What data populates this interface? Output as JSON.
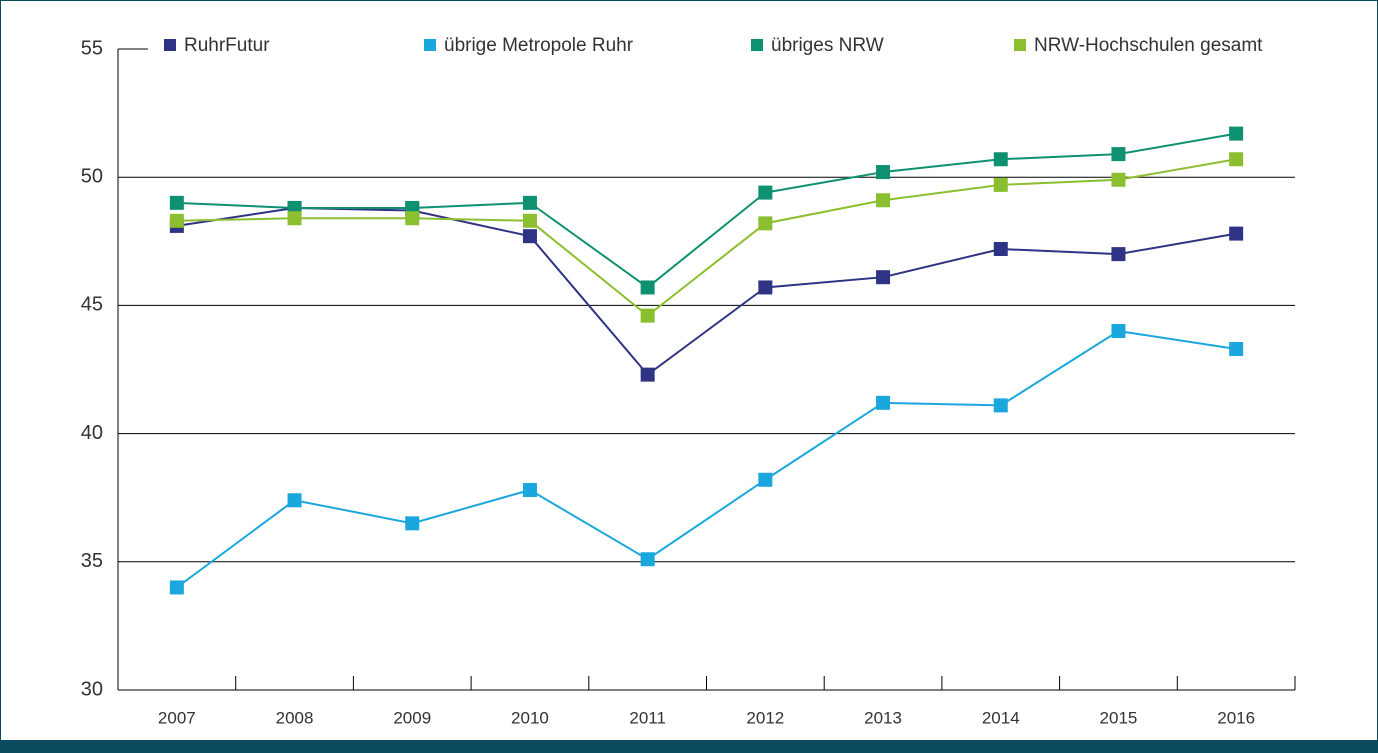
{
  "chart_data": {
    "type": "line",
    "categories": [
      "2007",
      "2008",
      "2009",
      "2010",
      "2011",
      "2012",
      "2013",
      "2014",
      "2015",
      "2016"
    ],
    "series": [
      {
        "name": "RuhrFutur",
        "color": "#2e3383",
        "values": [
          48.1,
          48.8,
          48.7,
          47.7,
          42.3,
          45.7,
          46.1,
          47.2,
          47.0,
          47.8
        ]
      },
      {
        "name": "übrige Metropole Ruhr",
        "color": "#1aa7dd",
        "values": [
          34.0,
          37.4,
          36.5,
          37.8,
          35.1,
          38.2,
          41.2,
          41.1,
          44.0,
          43.3
        ]
      },
      {
        "name": "übriges NRW",
        "color": "#0e9170",
        "values": [
          49.0,
          48.8,
          48.8,
          49.0,
          45.7,
          49.4,
          50.2,
          50.7,
          50.9,
          51.7
        ]
      },
      {
        "name": "NRW-Hochschulen gesamt",
        "color": "#8cbf2f",
        "values": [
          48.3,
          48.4,
          48.4,
          48.3,
          44.6,
          48.2,
          49.1,
          49.7,
          49.9,
          50.7
        ]
      }
    ],
    "ylim": [
      30,
      55
    ],
    "yticks": [
      30,
      35,
      40,
      45,
      50,
      55
    ],
    "grid": true
  }
}
